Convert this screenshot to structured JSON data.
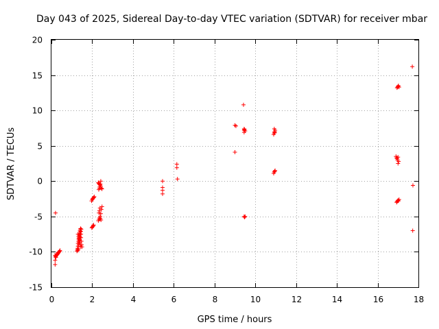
{
  "chart_data": {
    "type": "scatter",
    "title": "Day 043 of 2025, Sidereal Day-to-day VTEC variation (SDTVAR) for receiver mbar",
    "xlabel": "GPS time / hours",
    "ylabel": "SDTVAR / TECUs",
    "xlim": [
      0,
      18
    ],
    "ylim": [
      -15,
      20
    ],
    "xticks": [
      0,
      2,
      4,
      6,
      8,
      10,
      12,
      14,
      16,
      18
    ],
    "yticks": [
      -15,
      -10,
      -5,
      0,
      5,
      10,
      15,
      20
    ],
    "grid": true,
    "marker": "+",
    "color": "#ff0000",
    "series": [
      {
        "name": "SDTVAR",
        "x": [
          0.18,
          0.18,
          0.18,
          0.2,
          0.22,
          0.25,
          0.28,
          0.3,
          0.33,
          0.35,
          0.38,
          0.4,
          0.42,
          0.2,
          0.22,
          0.24,
          1.25,
          1.27,
          1.28,
          1.3,
          1.3,
          1.32,
          1.33,
          1.35,
          1.35,
          1.37,
          1.38,
          1.4,
          1.4,
          1.42,
          1.43,
          1.45,
          1.45,
          1.47,
          1.48,
          1.5,
          1.3,
          1.32,
          1.34,
          1.36,
          1.38,
          1.4,
          1.42,
          1.44,
          1.46,
          1.3,
          1.33,
          1.36,
          1.38,
          1.4,
          1.42,
          1.44,
          1.97,
          2.0,
          2.02,
          2.05,
          2.08,
          2.1,
          1.98,
          2.0,
          2.03,
          2.05,
          2.07,
          2.3,
          2.32,
          2.35,
          2.37,
          2.4,
          2.42,
          2.45,
          2.48,
          2.32,
          2.35,
          2.37,
          2.4,
          2.42,
          2.3,
          2.33,
          2.36,
          2.39,
          2.42,
          2.45,
          2.48,
          2.33,
          2.35,
          2.38,
          2.4,
          2.43,
          5.45,
          5.45,
          5.45,
          5.45,
          6.15,
          6.15,
          6.18,
          9.0,
          9.05,
          9.0,
          9.42,
          9.45,
          9.45,
          9.45,
          9.47,
          9.5,
          9.5,
          9.45,
          9.47,
          10.9,
          10.93,
          10.95,
          10.97,
          10.93,
          10.95,
          10.9,
          10.93,
          10.95,
          10.97,
          16.9,
          16.93,
          16.95,
          16.97,
          17.0,
          17.03,
          17.0,
          16.95,
          16.98,
          17.0,
          17.02,
          17.05,
          16.93,
          16.95,
          16.98,
          17.0,
          17.02,
          17.05,
          17.7,
          17.73,
          17.72
        ],
        "y": [
          -11.8,
          -11.2,
          -10.5,
          -10.7,
          -10.6,
          -10.5,
          -10.4,
          -10.3,
          -10.2,
          -10.1,
          -10.0,
          -9.9,
          -9.8,
          -4.5,
          -10.8,
          -10.3,
          -9.9,
          -9.7,
          -9.5,
          -9.2,
          -8.8,
          -8.5,
          -8.2,
          -8.0,
          -7.8,
          -7.6,
          -7.4,
          -7.2,
          -7.0,
          -6.8,
          -6.7,
          -7.5,
          -8.0,
          -8.5,
          -9.0,
          -9.3,
          -9.8,
          -9.6,
          -9.0,
          -8.7,
          -8.3,
          -7.9,
          -7.5,
          -7.1,
          -6.8,
          -7.5,
          -7.8,
          -8.1,
          -8.4,
          -8.7,
          -9.0,
          -9.3,
          -2.8,
          -2.6,
          -2.5,
          -2.4,
          -2.3,
          -2.2,
          -6.6,
          -6.5,
          -6.4,
          -6.3,
          -6.2,
          -0.2,
          -0.3,
          -0.4,
          -0.5,
          -0.6,
          -0.8,
          -1.0,
          -1.1,
          -1.2,
          -1.0,
          -0.8,
          -0.4,
          0.0,
          -5.6,
          -5.4,
          -5.2,
          -5.0,
          -4.6,
          -4.0,
          -3.6,
          -4.5,
          -4.2,
          -3.8,
          -5.3,
          -5.5,
          0.0,
          -0.9,
          -1.3,
          -1.8,
          2.4,
          1.9,
          0.3,
          7.9,
          7.8,
          4.1,
          10.8,
          7.4,
          7.2,
          6.9,
          7.3,
          7.1,
          -5.0,
          -5.0,
          -5.1,
          6.6,
          6.8,
          7.0,
          7.2,
          7.4,
          6.9,
          1.1,
          1.3,
          1.4,
          1.5,
          3.5,
          3.3,
          3.2,
          3.0,
          3.4,
          2.8,
          2.5,
          13.2,
          13.3,
          13.4,
          13.5,
          13.3,
          -3.0,
          -2.9,
          -2.8,
          -2.7,
          -2.8,
          -2.6,
          16.2,
          -0.6,
          -7.0
        ]
      }
    ]
  }
}
